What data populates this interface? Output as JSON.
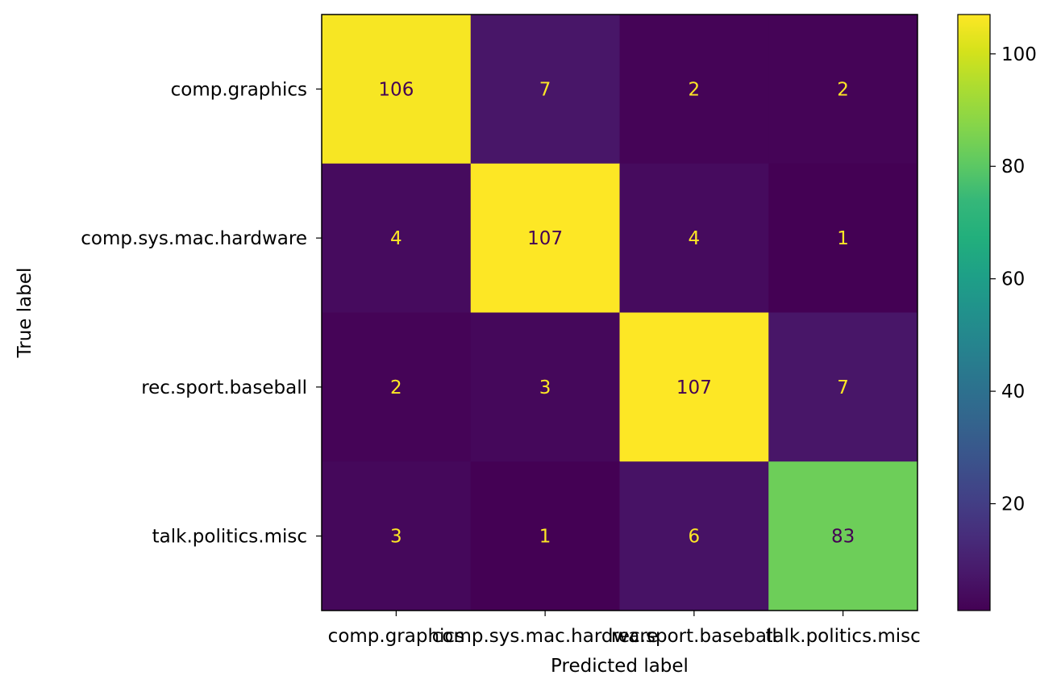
{
  "chart_data": {
    "type": "heatmap",
    "title": "",
    "xlabel": "Predicted label",
    "ylabel": "True label",
    "x_categories": [
      "comp.graphics",
      "comp.sys.mac.hardware",
      "rec.sport.baseball",
      "talk.politics.misc"
    ],
    "y_categories": [
      "comp.graphics",
      "comp.sys.mac.hardware",
      "rec.sport.baseball",
      "talk.politics.misc"
    ],
    "matrix": [
      [
        106,
        7,
        2,
        2
      ],
      [
        4,
        107,
        4,
        1
      ],
      [
        2,
        3,
        107,
        7
      ],
      [
        3,
        1,
        6,
        83
      ]
    ],
    "colormap": "viridis",
    "colorbar": {
      "vmin": 1,
      "vmax": 107,
      "ticks": [
        20,
        40,
        60,
        80,
        100
      ]
    },
    "text_color_low": "#fde725",
    "text_color_high": "#440154"
  }
}
